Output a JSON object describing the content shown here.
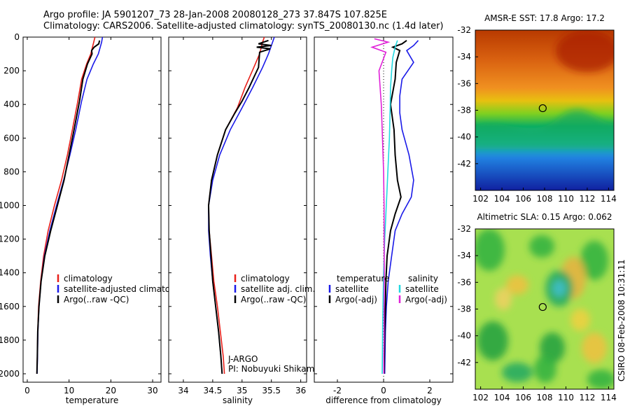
{
  "header": {
    "line1": "Argo profile: JA 5901207_73 28-Jan-2008 20080128_273 37.847S 107.825E",
    "line2": "Climatology: CARS2006. Satellite-adjusted climatology: synTS_20080130.nc (1.4d later)"
  },
  "stamp": "CSIRO 08-Feb-2008 10:31:11",
  "colors": {
    "clim": "#e8201a",
    "sat": "#1a1ae8",
    "argo": "#000000",
    "cyan": "#22d8e0",
    "magenta": "#e020d8"
  },
  "chart_data": [
    {
      "type": "line",
      "id": "temperature",
      "xlabel": "temperature",
      "xlim": [
        -1,
        32
      ],
      "ylim": [
        0,
        2050
      ],
      "y_inverted": true,
      "xticks": [
        0,
        10,
        20,
        30
      ],
      "yticks": [
        0,
        200,
        400,
        600,
        800,
        1000,
        1200,
        1400,
        1600,
        1800,
        2000
      ],
      "legend": [
        "climatology",
        "satellite-adjusted climatology",
        "Argo(..raw -QC)"
      ],
      "legend_placement": "bottom-center",
      "series": [
        {
          "name": "climatology",
          "color": "clim",
          "x": [
            16.2,
            15.9,
            15.2,
            14.2,
            13,
            12.1,
            10.8,
            9.6,
            8.2,
            6.5,
            5,
            3.9,
            3.2,
            2.7,
            2.5,
            2.4,
            2.3
          ],
          "y": [
            0,
            30,
            100,
            160,
            250,
            380,
            550,
            700,
            850,
            1000,
            1150,
            1300,
            1450,
            1600,
            1750,
            1900,
            2000
          ]
        },
        {
          "name": "satellite-adjusted climatology",
          "color": "sat",
          "x": [
            18,
            17.8,
            17,
            15.8,
            14.3,
            13,
            11.6,
            10.2,
            8.7,
            7,
            5.4,
            4.1,
            3.3,
            2.8,
            2.55,
            2.45,
            2.35
          ],
          "y": [
            0,
            30,
            100,
            160,
            250,
            380,
            550,
            700,
            850,
            1000,
            1150,
            1300,
            1450,
            1600,
            1750,
            1900,
            2000
          ]
        },
        {
          "name": "Argo(..raw -QC)",
          "color": "argo",
          "x": [
            17.3,
            17.1,
            16,
            15.4,
            15.5,
            14.4,
            13.3,
            12.5,
            11.2,
            10,
            8.8,
            7.2,
            5.6,
            4.2,
            3.3,
            2.8,
            2.5,
            2.4,
            2.3
          ],
          "y": [
            20,
            40,
            60,
            80,
            100,
            160,
            250,
            380,
            550,
            700,
            850,
            1000,
            1150,
            1300,
            1450,
            1600,
            1750,
            1900,
            2000
          ]
        }
      ]
    },
    {
      "type": "line",
      "id": "salinity",
      "xlabel": "salinity",
      "xlim": [
        33.75,
        36.1
      ],
      "ylim": [
        0,
        2050
      ],
      "y_inverted": true,
      "xticks": [
        34,
        34.5,
        35,
        35.5,
        36
      ],
      "yticks": [
        0,
        200,
        400,
        600,
        800,
        1000,
        1200,
        1400,
        1600,
        1800,
        2000
      ],
      "legend": [
        "climatology",
        "satellite adj. clim.",
        "Argo(..raw -QC)"
      ],
      "legend_placement": "bottom-center",
      "annotation": [
        "J-ARGO",
        "PI: Nobuyuki Shikama"
      ],
      "series": [
        {
          "name": "climatology",
          "color": "clim",
          "x": [
            35.38,
            35.35,
            35.3,
            35.2,
            35.05,
            34.92,
            34.72,
            34.58,
            34.48,
            34.43,
            34.44,
            34.48,
            34.52,
            34.58,
            34.63,
            34.68,
            34.7
          ],
          "y": [
            0,
            30,
            100,
            180,
            300,
            420,
            550,
            700,
            850,
            1000,
            1150,
            1300,
            1450,
            1600,
            1750,
            1900,
            2000
          ]
        },
        {
          "name": "satellite adj. clim.",
          "color": "sat",
          "x": [
            35.55,
            35.52,
            35.45,
            35.35,
            35.18,
            35.0,
            34.8,
            34.62,
            34.5,
            34.43,
            34.43,
            34.46,
            34.5,
            34.55,
            34.6,
            34.64,
            34.66
          ],
          "y": [
            0,
            30,
            100,
            180,
            300,
            420,
            550,
            700,
            850,
            1000,
            1150,
            1300,
            1450,
            1600,
            1750,
            1900,
            2000
          ]
        },
        {
          "name": "Argo(..raw -QC)",
          "color": "argo",
          "x": [
            35.45,
            35.28,
            35.5,
            35.25,
            35.48,
            35.3,
            35.28,
            35.12,
            35.0,
            34.88,
            34.72,
            34.58,
            34.48,
            34.43,
            34.44,
            34.47,
            34.5,
            34.55,
            34.6,
            34.64,
            34.66
          ],
          "y": [
            20,
            40,
            50,
            60,
            70,
            90,
            180,
            300,
            380,
            450,
            550,
            700,
            850,
            1000,
            1150,
            1300,
            1450,
            1600,
            1750,
            1900,
            2000
          ]
        }
      ]
    },
    {
      "type": "line",
      "id": "difference",
      "xlabel": "difference from climatology",
      "xlim": [
        -3,
        3
      ],
      "ylim": [
        0,
        2050
      ],
      "y_inverted": true,
      "xticks": [
        -2,
        0,
        2
      ],
      "yticks": [
        0,
        200,
        400,
        600,
        800,
        1000,
        1200,
        1400,
        1600,
        1800,
        2000
      ],
      "legend_temperature_header": "temperature",
      "legend_salinity_header": "salinity",
      "legend": [
        "satellite",
        "Argo(-adj)",
        "satellite",
        "Argo(-adj)"
      ],
      "legend_placement": "bottom-center",
      "series": [
        {
          "name": "satellite",
          "group": "temperature",
          "color": "sat",
          "x": [
            1.5,
            1.3,
            1.0,
            1.3,
            0.8,
            0.7,
            0.7,
            0.8,
            1.1,
            1.3,
            1.2,
            0.8,
            0.5,
            0.35,
            0.2,
            0.12,
            0.08,
            0.06,
            0.05
          ],
          "y": [
            20,
            50,
            80,
            150,
            250,
            350,
            450,
            550,
            700,
            850,
            950,
            1050,
            1150,
            1300,
            1450,
            1600,
            1750,
            1900,
            2000
          ]
        },
        {
          "name": "Argo(-adj)",
          "group": "temperature",
          "color": "argo",
          "x": [
            1.0,
            0.8,
            0.4,
            0.7,
            0.55,
            0.5,
            0.3,
            0.45,
            0.5,
            0.6,
            0.75,
            0.5,
            0.3,
            0.15,
            0.1,
            0.08,
            0.05,
            0.03,
            0.02
          ],
          "y": [
            20,
            40,
            60,
            80,
            150,
            250,
            400,
            550,
            700,
            850,
            950,
            1050,
            1150,
            1300,
            1450,
            1600,
            1750,
            1900,
            2000
          ]
        },
        {
          "name": "satellite",
          "group": "salinity",
          "color": "cyan",
          "x": [
            0.6,
            0.5,
            0.4,
            0.35,
            0.3,
            0.28,
            0.25,
            0.2,
            0.15,
            0.1,
            0.05,
            0.0,
            -0.02,
            -0.04,
            -0.05,
            -0.06
          ],
          "y": [
            20,
            60,
            120,
            200,
            300,
            450,
            600,
            750,
            900,
            1050,
            1200,
            1400,
            1550,
            1700,
            1850,
            2000
          ]
        },
        {
          "name": "Argo(-adj)",
          "group": "salinity",
          "color": "magenta",
          "x": [
            -0.4,
            0.2,
            -0.5,
            0.1,
            -0.2,
            -0.1,
            -0.05,
            0.0,
            0.02,
            0.02,
            0.03,
            0.02,
            0.02,
            0.01,
            0.01
          ],
          "y": [
            10,
            30,
            60,
            90,
            200,
            400,
            600,
            800,
            1000,
            1200,
            1400,
            1600,
            1800,
            1900,
            2000
          ]
        }
      ]
    },
    {
      "type": "heatmap",
      "id": "sst",
      "title": "AMSR-E SST: 17.8 Argo: 17.2",
      "xlim": [
        101.5,
        114.5
      ],
      "ylim": [
        -44,
        -32
      ],
      "xticks": [
        102,
        104,
        106,
        108,
        110,
        112,
        114
      ],
      "yticks": [
        -32,
        -34,
        -36,
        -38,
        -40,
        -42
      ],
      "marker": {
        "lon": 107.825,
        "lat": -37.847
      }
    },
    {
      "type": "heatmap",
      "id": "sla",
      "title": "Altimetric SLA: 0.15 Argo: 0.062",
      "xlim": [
        101.5,
        114.5
      ],
      "ylim": [
        -44,
        -32
      ],
      "xticks": [
        102,
        104,
        106,
        108,
        110,
        112,
        114
      ],
      "yticks": [
        -32,
        -34,
        -36,
        -38,
        -40,
        -42
      ],
      "marker": {
        "lon": 107.825,
        "lat": -37.847
      }
    }
  ]
}
